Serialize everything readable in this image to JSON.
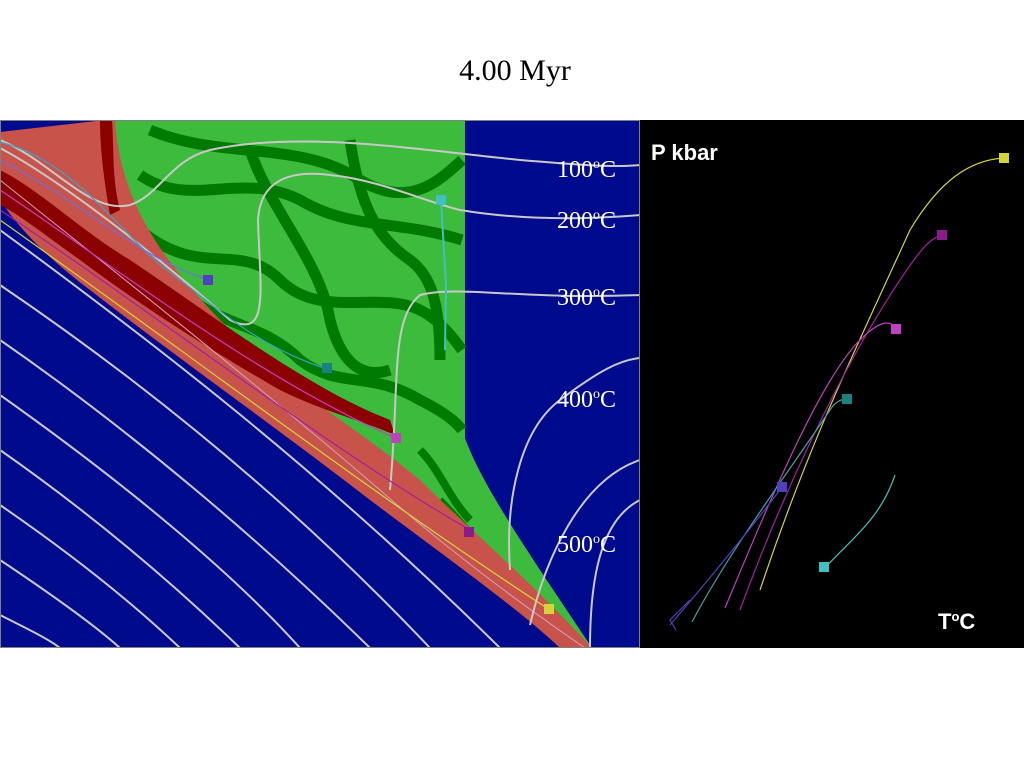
{
  "title": "4.00 Myr",
  "isotherms": [
    {
      "value": "100",
      "unit": "C",
      "sup": "o"
    },
    {
      "value": "200",
      "unit": "C",
      "sup": "o"
    },
    {
      "value": "300",
      "unit": "C",
      "sup": "o"
    },
    {
      "value": "400",
      "unit": "C",
      "sup": "o"
    },
    {
      "value": "500",
      "unit": "C",
      "sup": "o"
    }
  ],
  "pt_panel": {
    "y_label": "P kbar",
    "x_label_main": "T",
    "x_label_sup": "o",
    "x_label_unit": "C"
  },
  "colors": {
    "mantle": "#000a8c",
    "crust_light": "#3dbb3d",
    "crust_dark": "#007a00",
    "sediment_red": "#c8534a",
    "sediment_dark": "#8b0000",
    "isotherm": "#c8c8c8",
    "panel_bg": "#000000",
    "marker_yellow": "#d4d43a",
    "marker_purple": "#8b1a8b",
    "marker_magenta": "#c040c0",
    "marker_teal": "#1a8080",
    "marker_blue": "#5040c0",
    "marker_cyan": "#40c0c0"
  }
}
